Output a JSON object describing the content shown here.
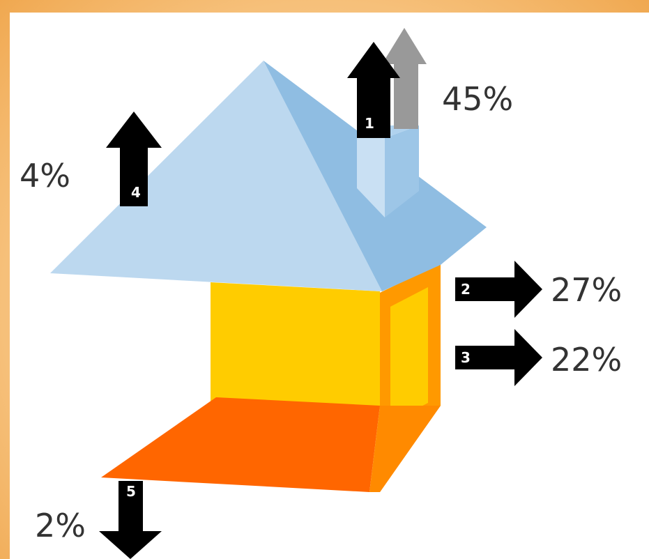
{
  "diagram": {
    "flows": [
      {
        "id": "1",
        "label": "45%",
        "direction": "up"
      },
      {
        "id": "2",
        "label": "27%",
        "direction": "right"
      },
      {
        "id": "3",
        "label": "22%",
        "direction": "right"
      },
      {
        "id": "4",
        "label": "4%",
        "direction": "up"
      },
      {
        "id": "5",
        "label": "2%",
        "direction": "down"
      }
    ],
    "colors": {
      "frame": "#f6c07a",
      "roof_light": "#bcd8ef",
      "roof_dark": "#8fbde2",
      "wall_front": "#ffcc00",
      "wall_side": "#ff9900",
      "floor": "#ff6600",
      "arrow": "#000000",
      "arrow_secondary": "#999999",
      "text": "#333333"
    }
  }
}
